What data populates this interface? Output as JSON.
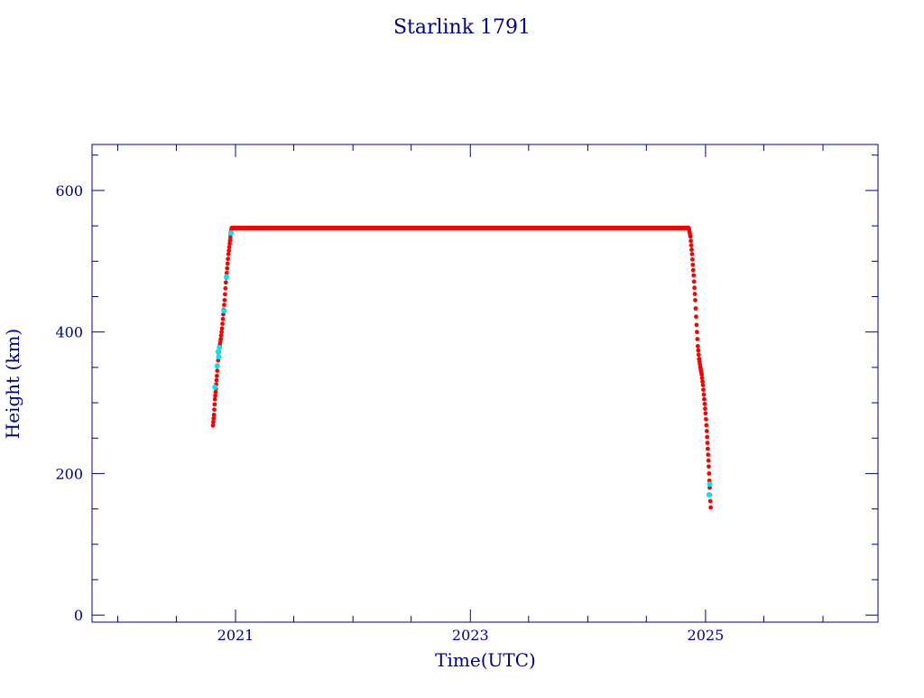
{
  "colors": {
    "axes": "#00008b",
    "text": "#00008b",
    "series_main": "#ff0000",
    "series_marker": "#404040",
    "series_alt": "#00e5ee",
    "background": "#ffffff"
  },
  "chart_data": {
    "type": "scatter",
    "title": "Starlink 1791",
    "xlabel": "Time(UTC)",
    "ylabel": "Height (km)",
    "xlim": [
      "2019-10-13",
      "2026-06-21"
    ],
    "ylim": [
      -10,
      665
    ],
    "x_ticks": [
      "2021-01-01",
      "2023-01-01",
      "2025-01-01"
    ],
    "x_tick_labels": [
      "2021",
      "2023",
      "2025"
    ],
    "y_ticks": [
      0,
      200,
      400,
      600
    ],
    "y_tick_labels": [
      "0",
      "200",
      "400",
      "600"
    ],
    "grid": false,
    "legend": "none",
    "series": [
      {
        "color": "#ff0000",
        "points": [
          [
            "2020-10-23",
            268
          ],
          [
            "2020-10-26",
            283
          ],
          [
            "2020-10-29",
            305
          ],
          [
            "2020-11-01",
            320
          ],
          [
            "2020-11-04",
            338
          ],
          [
            "2020-11-08",
            360
          ],
          [
            "2020-11-12",
            378
          ],
          [
            "2020-11-16",
            390
          ],
          [
            "2020-11-20",
            405
          ],
          [
            "2020-11-24",
            425
          ],
          [
            "2020-11-28",
            445
          ],
          [
            "2020-12-02",
            470
          ],
          [
            "2020-12-06",
            490
          ],
          [
            "2020-12-10",
            510
          ],
          [
            "2020-12-14",
            525
          ],
          [
            "2020-12-17",
            538
          ],
          [
            "2020-12-20",
            547
          ],
          [
            "2021-03-01",
            547
          ],
          [
            "2021-06-01",
            547
          ],
          [
            "2021-09-01",
            547
          ],
          [
            "2021-12-01",
            547
          ],
          [
            "2022-03-01",
            547
          ],
          [
            "2022-06-01",
            547
          ],
          [
            "2022-09-01",
            547
          ],
          [
            "2022-12-01",
            547
          ],
          [
            "2023-03-01",
            547
          ],
          [
            "2023-06-01",
            547
          ],
          [
            "2023-09-01",
            547
          ],
          [
            "2023-12-01",
            547
          ],
          [
            "2024-03-01",
            547
          ],
          [
            "2024-06-01",
            547
          ],
          [
            "2024-09-01",
            547
          ],
          [
            "2024-11-10",
            547
          ],
          [
            "2024-11-15",
            535
          ],
          [
            "2024-11-20",
            510
          ],
          [
            "2024-11-25",
            480
          ],
          [
            "2024-11-30",
            445
          ],
          [
            "2024-12-04",
            410
          ],
          [
            "2024-12-08",
            380
          ],
          [
            "2024-12-12",
            362
          ],
          [
            "2024-12-16",
            350
          ],
          [
            "2024-12-20",
            340
          ],
          [
            "2024-12-24",
            325
          ],
          [
            "2024-12-28",
            305
          ],
          [
            "2025-01-01",
            285
          ],
          [
            "2025-01-05",
            260
          ],
          [
            "2025-01-08",
            235
          ],
          [
            "2025-01-11",
            210
          ],
          [
            "2025-01-13",
            190
          ],
          [
            "2025-01-15",
            170
          ],
          [
            "2025-01-17",
            152
          ]
        ]
      },
      {
        "color": "#00e5ee",
        "points": [
          [
            "2020-10-29",
            322
          ],
          [
            "2020-11-05",
            352
          ],
          [
            "2020-11-08",
            372
          ],
          [
            "2020-11-10",
            365
          ],
          [
            "2020-11-12",
            378
          ],
          [
            "2020-11-26",
            430
          ],
          [
            "2020-12-04",
            478
          ],
          [
            "2020-12-18",
            540
          ],
          [
            "2025-01-12",
            170
          ],
          [
            "2025-01-14",
            185
          ]
        ]
      }
    ]
  }
}
